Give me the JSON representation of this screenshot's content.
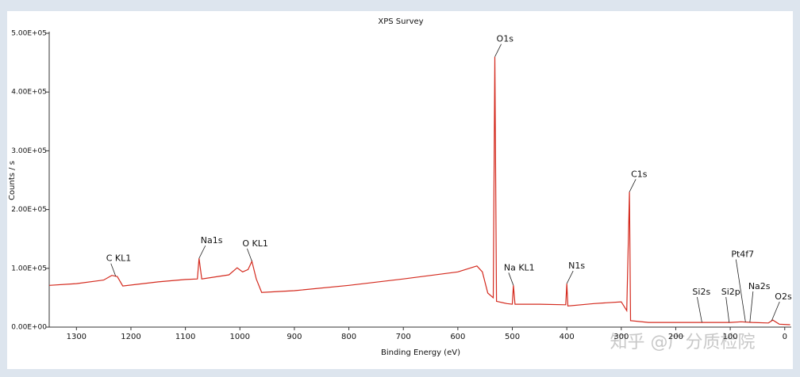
{
  "chart_data": {
    "type": "line",
    "title": "XPS Survey",
    "x_label": "Binding Energy (eV)",
    "y_label": "Counts / s",
    "color": "#d42a1e",
    "x": [
      1350,
      1300,
      1250,
      1235,
      1225,
      1215,
      1150,
      1100,
      1078,
      1075,
      1070,
      1020,
      1005,
      995,
      985,
      978,
      970,
      960,
      900,
      800,
      700,
      600,
      565,
      555,
      545,
      535,
      532,
      529,
      510,
      500,
      498,
      495,
      450,
      402,
      400,
      398,
      350,
      300,
      290,
      285,
      283,
      250,
      150,
      100,
      80,
      60,
      30,
      22,
      10,
      -10
    ],
    "values": [
      71000,
      74000,
      80000,
      88000,
      86000,
      70000,
      77000,
      81000,
      82000,
      117000,
      82000,
      89000,
      101000,
      94000,
      98000,
      112000,
      82000,
      59000,
      62000,
      71000,
      82000,
      94000,
      104000,
      94000,
      58000,
      50000,
      460000,
      44000,
      40000,
      39000,
      71000,
      39000,
      39000,
      38000,
      74000,
      36000,
      40000,
      43000,
      28000,
      230000,
      11000,
      8000,
      8000,
      8000,
      9000,
      8000,
      7000,
      12000,
      5000,
      4000
    ],
    "xlim": [
      1350,
      -12
    ],
    "xticks": [
      1300,
      1200,
      1100,
      1000,
      900,
      800,
      700,
      600,
      500,
      400,
      300,
      200,
      100,
      0
    ],
    "ylim": [
      0,
      500000
    ],
    "yticks": [
      {
        "value": 0,
        "label": "0.00E+00"
      },
      {
        "value": 100000,
        "label": "1.00E+05"
      },
      {
        "value": 200000,
        "label": "2.00E+05"
      },
      {
        "value": 300000,
        "label": "3.00E+05"
      },
      {
        "value": 400000,
        "label": "4.00E+05"
      },
      {
        "value": 500000,
        "label": "5.00E+05"
      }
    ],
    "annotations": [
      {
        "text": "C KL1",
        "x": 1228
      },
      {
        "text": "Na1s",
        "x": 1075
      },
      {
        "text": "O KL1",
        "x": 978
      },
      {
        "text": "O1s",
        "x": 532
      },
      {
        "text": "Na KL1",
        "x": 498
      },
      {
        "text": "N1s",
        "x": 400
      },
      {
        "text": "C1s",
        "x": 285
      },
      {
        "text": "Si2s",
        "x": 152
      },
      {
        "text": "Si2p",
        "x": 102
      },
      {
        "text": "Pt4f7",
        "x": 72
      },
      {
        "text": "Na2s",
        "x": 64
      },
      {
        "text": "O2s",
        "x": 24
      }
    ],
    "watermark": "知乎 @广分质检院"
  }
}
